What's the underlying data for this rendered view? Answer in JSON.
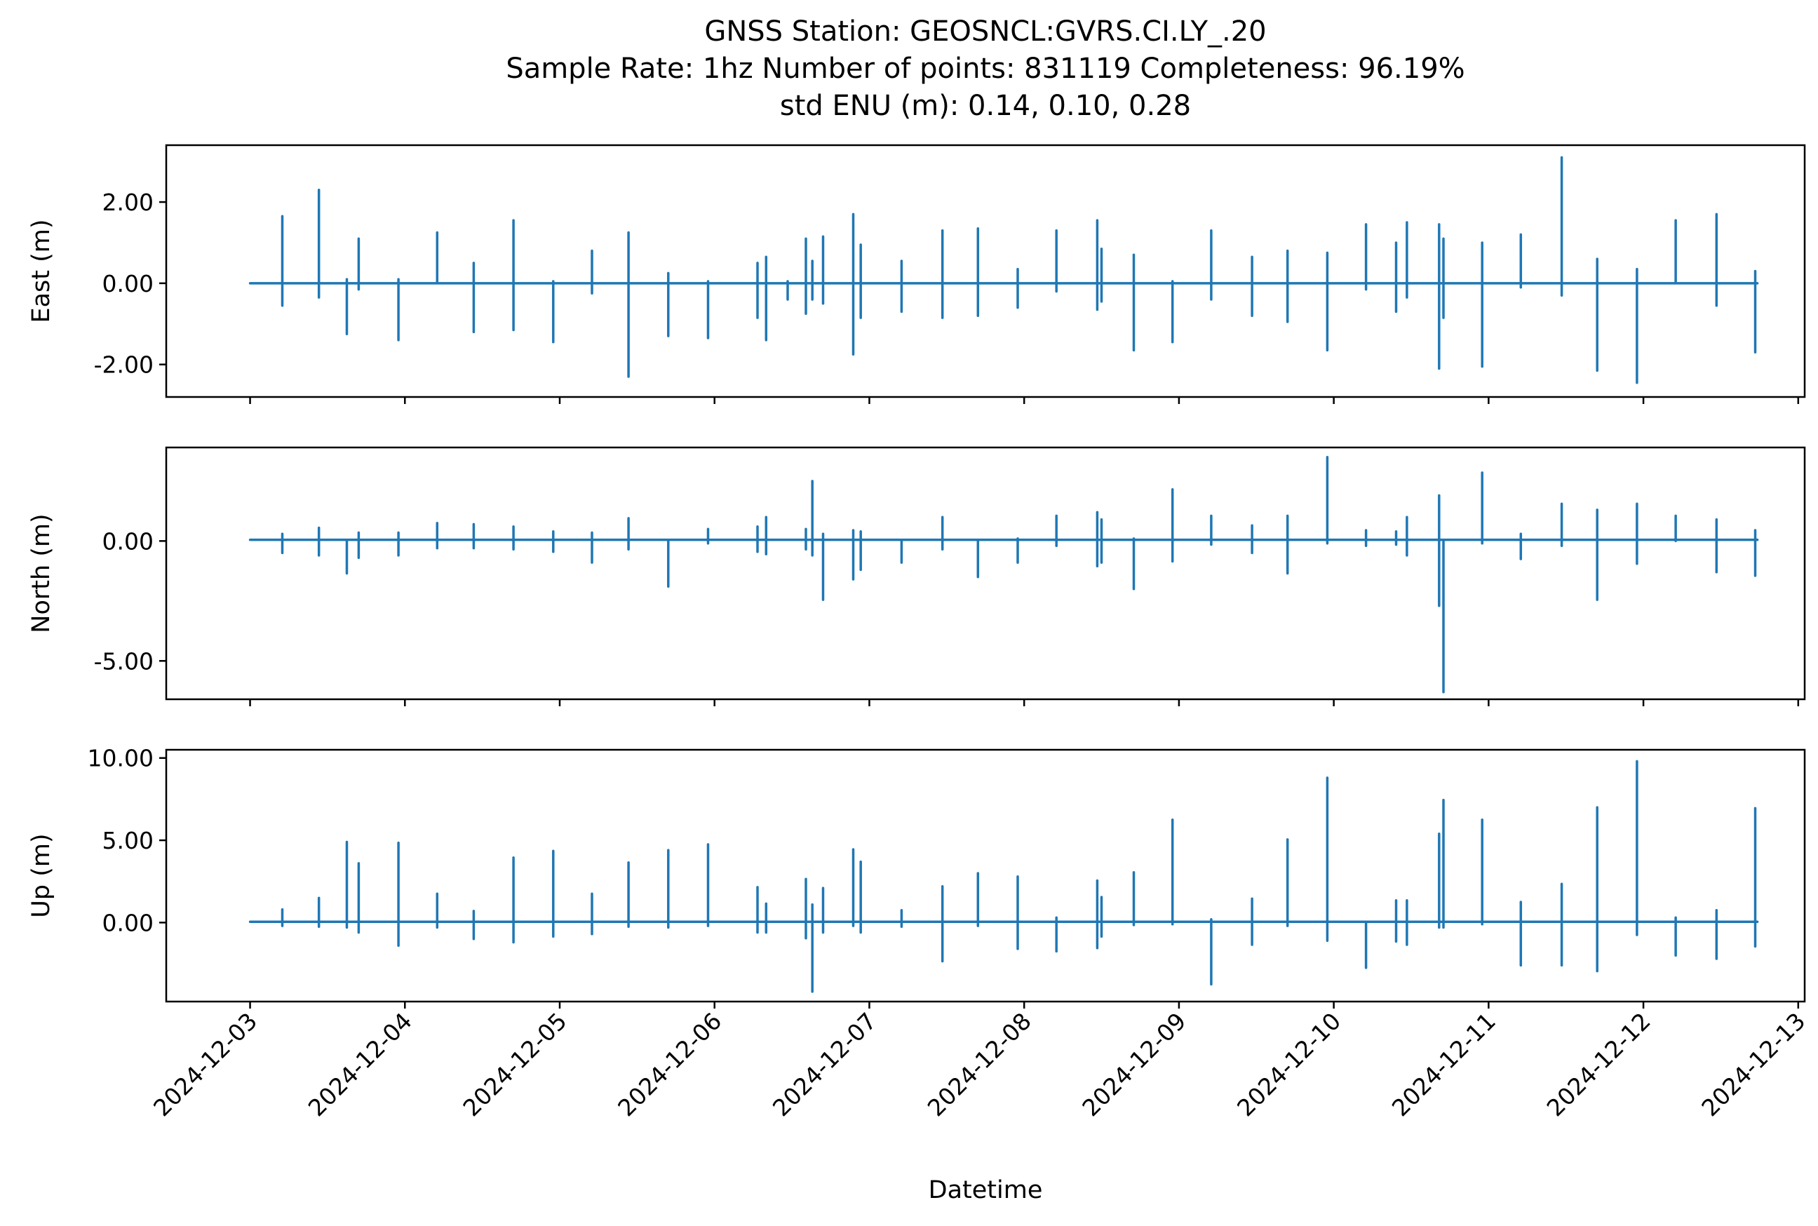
{
  "chart_data": {
    "type": "line",
    "title": {
      "line1": "GNSS Station: GEOSNCL:GVRS.CI.LY_.20",
      "line2": "Sample Rate: 1hz   Number of points: 831119    Completeness:  96.19%",
      "line3": "std ENU (m):  0.14, 0.10, 0.28"
    },
    "xlabel": "Datetime",
    "xlim": [
      "2024-12-02T11:00",
      "2024-12-13T01:00"
    ],
    "x_ticks": [
      "2024-12-03",
      "2024-12-04",
      "2024-12-05",
      "2024-12-06",
      "2024-12-07",
      "2024-12-08",
      "2024-12-09",
      "2024-12-10",
      "2024-12-11",
      "2024-12-12",
      "2024-12-13"
    ],
    "series_color": "#1f77b4",
    "grid": false,
    "legend": false,
    "panels": [
      {
        "ylabel": "East (m)",
        "ylim": [
          -2.8,
          3.4
        ],
        "y_ticks": [
          2.0,
          0.0,
          -2.0
        ],
        "y_tick_labels": [
          "2.00",
          "0.00",
          "-2.00"
        ],
        "baseline": 0.0,
        "spikes": [
          [
            "2024-12-03T05:00",
            1.65,
            -0.55
          ],
          [
            "2024-12-03T10:40",
            2.3,
            -0.35
          ],
          [
            "2024-12-03T15:00",
            0.1,
            -1.25
          ],
          [
            "2024-12-03T16:50",
            1.1,
            -0.15
          ],
          [
            "2024-12-03T23:00",
            0.1,
            -1.4
          ],
          [
            "2024-12-04T05:00",
            1.25,
            0.0
          ],
          [
            "2024-12-04T10:40",
            0.5,
            -1.2
          ],
          [
            "2024-12-04T16:50",
            1.55,
            -1.15
          ],
          [
            "2024-12-04T23:00",
            0.05,
            -1.45
          ],
          [
            "2024-12-05T05:00",
            0.8,
            -0.25
          ],
          [
            "2024-12-05T10:40",
            1.25,
            -2.3
          ],
          [
            "2024-12-05T16:50",
            0.25,
            -1.3
          ],
          [
            "2024-12-05T23:00",
            0.05,
            -1.35
          ],
          [
            "2024-12-06T06:40",
            0.5,
            -0.85
          ],
          [
            "2024-12-06T08:00",
            0.65,
            -1.4
          ],
          [
            "2024-12-06T11:20",
            0.05,
            -0.4
          ],
          [
            "2024-12-06T14:10",
            1.1,
            -0.75
          ],
          [
            "2024-12-06T15:10",
            0.55,
            -0.4
          ],
          [
            "2024-12-06T16:50",
            1.15,
            -0.5
          ],
          [
            "2024-12-06T21:30",
            1.7,
            -1.75
          ],
          [
            "2024-12-06T22:40",
            0.95,
            -0.85
          ],
          [
            "2024-12-07T05:00",
            0.55,
            -0.7
          ],
          [
            "2024-12-07T11:20",
            1.3,
            -0.85
          ],
          [
            "2024-12-07T16:50",
            1.35,
            -0.8
          ],
          [
            "2024-12-07T23:00",
            0.35,
            -0.6
          ],
          [
            "2024-12-08T05:00",
            1.3,
            -0.2
          ],
          [
            "2024-12-08T11:20",
            1.55,
            -0.65
          ],
          [
            "2024-12-08T12:00",
            0.85,
            -0.45
          ],
          [
            "2024-12-08T17:00",
            0.7,
            -1.65
          ],
          [
            "2024-12-08T23:00",
            0.05,
            -1.45
          ],
          [
            "2024-12-09T05:00",
            1.3,
            -0.4
          ],
          [
            "2024-12-09T11:20",
            0.65,
            -0.8
          ],
          [
            "2024-12-09T16:50",
            0.8,
            -0.95
          ],
          [
            "2024-12-09T23:00",
            0.75,
            -1.65
          ],
          [
            "2024-12-10T05:00",
            1.45,
            -0.15
          ],
          [
            "2024-12-10T09:40",
            1.0,
            -0.7
          ],
          [
            "2024-12-10T11:20",
            1.5,
            -0.35
          ],
          [
            "2024-12-10T16:20",
            1.45,
            -2.1
          ],
          [
            "2024-12-10T17:00",
            1.1,
            -0.85
          ],
          [
            "2024-12-10T23:00",
            1.0,
            -2.05
          ],
          [
            "2024-12-11T05:00",
            1.2,
            -0.1
          ],
          [
            "2024-12-11T11:20",
            3.1,
            -0.3
          ],
          [
            "2024-12-11T16:50",
            0.6,
            -2.15
          ],
          [
            "2024-12-11T23:00",
            0.35,
            -2.45
          ],
          [
            "2024-12-12T05:00",
            1.55,
            0.0
          ],
          [
            "2024-12-12T11:20",
            1.7,
            -0.55
          ],
          [
            "2024-12-12T17:20",
            0.3,
            -1.7
          ]
        ]
      },
      {
        "ylabel": "North (m)",
        "ylim": [
          -6.6,
          3.9
        ],
        "y_ticks": [
          0.0,
          -5.0
        ],
        "y_tick_labels": [
          "0.00",
          "-5.00"
        ],
        "baseline": 0.05,
        "spikes": [
          [
            "2024-12-03T05:00",
            0.3,
            -0.5
          ],
          [
            "2024-12-03T10:40",
            0.55,
            -0.6
          ],
          [
            "2024-12-03T15:00",
            0.0,
            -1.35
          ],
          [
            "2024-12-03T16:50",
            0.35,
            -0.7
          ],
          [
            "2024-12-03T23:00",
            0.35,
            -0.6
          ],
          [
            "2024-12-04T05:00",
            0.75,
            -0.3
          ],
          [
            "2024-12-04T10:40",
            0.7,
            -0.3
          ],
          [
            "2024-12-04T16:50",
            0.6,
            -0.35
          ],
          [
            "2024-12-04T23:00",
            0.4,
            -0.45
          ],
          [
            "2024-12-05T05:00",
            0.35,
            -0.9
          ],
          [
            "2024-12-05T10:40",
            0.95,
            -0.35
          ],
          [
            "2024-12-05T16:50",
            0.05,
            -1.9
          ],
          [
            "2024-12-05T23:00",
            0.5,
            -0.1
          ],
          [
            "2024-12-06T06:40",
            0.6,
            -0.45
          ],
          [
            "2024-12-06T08:00",
            1.0,
            -0.55
          ],
          [
            "2024-12-06T14:10",
            0.5,
            -0.35
          ],
          [
            "2024-12-06T15:10",
            2.5,
            -0.6
          ],
          [
            "2024-12-06T16:50",
            0.3,
            -2.45
          ],
          [
            "2024-12-06T21:30",
            0.45,
            -1.6
          ],
          [
            "2024-12-06T22:40",
            0.4,
            -1.2
          ],
          [
            "2024-12-07T05:00",
            0.05,
            -0.9
          ],
          [
            "2024-12-07T11:20",
            1.0,
            -0.35
          ],
          [
            "2024-12-07T16:50",
            0.05,
            -1.5
          ],
          [
            "2024-12-07T23:00",
            0.1,
            -0.9
          ],
          [
            "2024-12-08T05:00",
            1.05,
            -0.2
          ],
          [
            "2024-12-08T11:20",
            1.2,
            -1.05
          ],
          [
            "2024-12-08T12:00",
            0.9,
            -0.9
          ],
          [
            "2024-12-08T17:00",
            0.1,
            -2.0
          ],
          [
            "2024-12-08T23:00",
            2.15,
            -0.85
          ],
          [
            "2024-12-09T05:00",
            1.05,
            -0.15
          ],
          [
            "2024-12-09T11:20",
            0.65,
            -0.5
          ],
          [
            "2024-12-09T16:50",
            1.05,
            -1.35
          ],
          [
            "2024-12-09T23:00",
            3.5,
            -0.1
          ],
          [
            "2024-12-10T05:00",
            0.45,
            -0.2
          ],
          [
            "2024-12-10T09:40",
            0.4,
            -0.15
          ],
          [
            "2024-12-10T11:20",
            1.0,
            -0.6
          ],
          [
            "2024-12-10T16:20",
            1.9,
            -2.7
          ],
          [
            "2024-12-10T17:00",
            0.05,
            -6.3
          ],
          [
            "2024-12-10T23:00",
            2.85,
            -0.1
          ],
          [
            "2024-12-11T05:00",
            0.3,
            -0.75
          ],
          [
            "2024-12-11T11:20",
            1.55,
            -0.2
          ],
          [
            "2024-12-11T16:50",
            1.3,
            -2.45
          ],
          [
            "2024-12-11T23:00",
            1.55,
            -0.95
          ],
          [
            "2024-12-12T05:00",
            1.05,
            0.0
          ],
          [
            "2024-12-12T11:20",
            0.9,
            -1.3
          ],
          [
            "2024-12-12T17:20",
            0.45,
            -1.45
          ]
        ]
      },
      {
        "ylabel": "Up (m)",
        "ylim": [
          -4.8,
          10.5
        ],
        "y_ticks": [
          10.0,
          5.0,
          0.0
        ],
        "y_tick_labels": [
          "10.00",
          "5.00",
          "0.00"
        ],
        "baseline": 0.05,
        "spikes": [
          [
            "2024-12-03T05:00",
            0.8,
            -0.2
          ],
          [
            "2024-12-03T10:40",
            1.5,
            -0.25
          ],
          [
            "2024-12-03T15:00",
            4.9,
            -0.3
          ],
          [
            "2024-12-03T16:50",
            3.6,
            -0.6
          ],
          [
            "2024-12-03T23:00",
            4.85,
            -1.4
          ],
          [
            "2024-12-04T05:00",
            1.75,
            -0.3
          ],
          [
            "2024-12-04T10:40",
            0.7,
            -1.0
          ],
          [
            "2024-12-04T16:50",
            3.95,
            -1.2
          ],
          [
            "2024-12-04T23:00",
            4.35,
            -0.85
          ],
          [
            "2024-12-05T05:00",
            1.75,
            -0.7
          ],
          [
            "2024-12-05T10:40",
            3.65,
            -0.25
          ],
          [
            "2024-12-05T16:50",
            4.4,
            -0.3
          ],
          [
            "2024-12-05T23:00",
            4.75,
            -0.2
          ],
          [
            "2024-12-06T06:40",
            2.15,
            -0.6
          ],
          [
            "2024-12-06T08:00",
            1.15,
            -0.6
          ],
          [
            "2024-12-06T14:10",
            2.65,
            -0.95
          ],
          [
            "2024-12-06T15:10",
            1.1,
            -4.2
          ],
          [
            "2024-12-06T16:50",
            2.1,
            -0.6
          ],
          [
            "2024-12-06T21:30",
            4.45,
            -0.2
          ],
          [
            "2024-12-06T22:40",
            3.7,
            -0.6
          ],
          [
            "2024-12-07T05:00",
            0.75,
            -0.25
          ],
          [
            "2024-12-07T11:20",
            2.2,
            -2.35
          ],
          [
            "2024-12-07T16:50",
            3.0,
            -0.2
          ],
          [
            "2024-12-07T23:00",
            2.8,
            -1.6
          ],
          [
            "2024-12-08T05:00",
            0.3,
            -1.75
          ],
          [
            "2024-12-08T11:20",
            2.55,
            -1.55
          ],
          [
            "2024-12-08T12:00",
            1.55,
            -0.85
          ],
          [
            "2024-12-08T17:00",
            3.05,
            -0.15
          ],
          [
            "2024-12-08T23:00",
            6.25,
            -0.1
          ],
          [
            "2024-12-09T05:00",
            0.2,
            -3.75
          ],
          [
            "2024-12-09T11:20",
            1.45,
            -1.35
          ],
          [
            "2024-12-09T16:50",
            5.05,
            -0.2
          ],
          [
            "2024-12-09T23:00",
            8.8,
            -1.1
          ],
          [
            "2024-12-10T05:00",
            0.05,
            -2.75
          ],
          [
            "2024-12-10T09:40",
            1.35,
            -1.15
          ],
          [
            "2024-12-10T11:20",
            1.35,
            -1.35
          ],
          [
            "2024-12-10T16:20",
            5.4,
            -0.3
          ],
          [
            "2024-12-10T17:00",
            7.45,
            -0.3
          ],
          [
            "2024-12-10T23:00",
            6.25,
            -0.1
          ],
          [
            "2024-12-11T05:00",
            1.25,
            -2.6
          ],
          [
            "2024-12-11T11:20",
            2.35,
            -2.6
          ],
          [
            "2024-12-11T16:50",
            7.0,
            -2.95
          ],
          [
            "2024-12-11T23:00",
            9.8,
            -0.75
          ],
          [
            "2024-12-12T05:00",
            0.3,
            -2.0
          ],
          [
            "2024-12-12T11:20",
            0.75,
            -2.2
          ],
          [
            "2024-12-12T17:20",
            6.95,
            -1.45
          ]
        ]
      }
    ]
  }
}
